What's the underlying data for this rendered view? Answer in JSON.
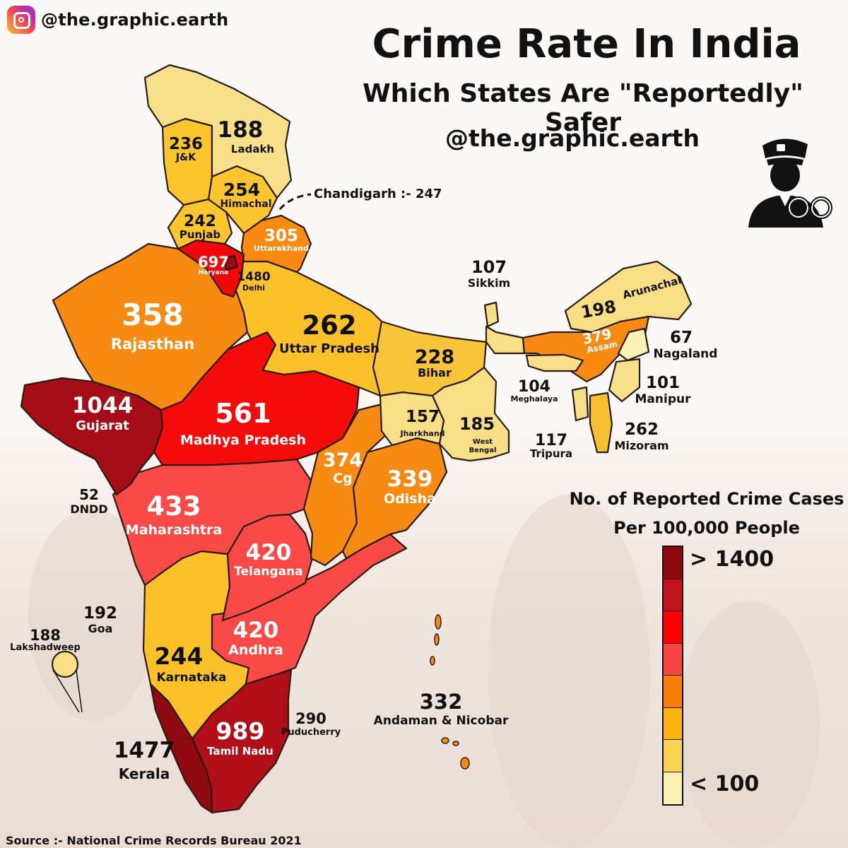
{
  "header": {
    "handle": "@the.graphic.earth",
    "title": "Crime Rate In India",
    "subtitle": "Which States Are \"Reportedly\" Safer",
    "handle2": "@the.graphic.earth"
  },
  "icons": {
    "brand": "instagram-icon",
    "illustration": "police-officer-handcuffs-icon"
  },
  "legend": {
    "title_line1": "No. of Reported Crime Cases",
    "title_line2": "Per 100,000 People",
    "high_label": "> 1400",
    "low_label": "< 100",
    "colors": [
      "#8e0a10",
      "#c0131b",
      "#ff0000",
      "#fb4545",
      "#f77f05",
      "#fbb30e",
      "#f8d34f",
      "#fcf1b2"
    ]
  },
  "source": "Source :- National Crime Records Bureau 2021",
  "chandigarh_note": "Chandigarh :- 247",
  "chart_data": {
    "type": "choropleth",
    "title": "Crime Rate In India",
    "subtitle": "Which States Are \"Reportedly\" Safer",
    "value_label": "No. of Reported Crime Cases Per 100,000 People",
    "regions": [
      {
        "name": "Ladakh",
        "value": 188,
        "color": "#f8e08a"
      },
      {
        "name": "J&K",
        "value": 236,
        "color": "#fbc52e"
      },
      {
        "name": "Himachal",
        "value": 254,
        "color": "#fbc52e"
      },
      {
        "name": "Punjab",
        "value": 242,
        "color": "#fbc52e"
      },
      {
        "name": "Uttarakhand",
        "value": 305,
        "color": "#f98c10"
      },
      {
        "name": "Haryana",
        "value": 697,
        "color": "#ee0a0a"
      },
      {
        "name": "Delhi",
        "value": 1480,
        "color": "#9b0b12"
      },
      {
        "name": "Chandigarh",
        "value": 247
      },
      {
        "name": "Rajasthan",
        "value": 358,
        "color": "#f68a12"
      },
      {
        "name": "Uttar Pradesh",
        "value": 262,
        "color": "#fbc02a"
      },
      {
        "name": "Bihar",
        "value": 228,
        "color": "#f8c53a"
      },
      {
        "name": "Sikkim",
        "value": 107,
        "color": "#f8df86"
      },
      {
        "name": "Arunachal",
        "value": 198,
        "color": "#f8df86"
      },
      {
        "name": "Assam",
        "value": 379,
        "color": "#f68a12"
      },
      {
        "name": "Nagaland",
        "value": 67,
        "color": "#fcf1b2"
      },
      {
        "name": "Meghalaya",
        "value": 104,
        "color": "#f8e08a"
      },
      {
        "name": "Manipur",
        "value": 101,
        "color": "#f8e08a"
      },
      {
        "name": "Mizoram",
        "value": 262,
        "color": "#f8c031"
      },
      {
        "name": "Tripura",
        "value": 117,
        "color": "#f8e08a"
      },
      {
        "name": "Jharkhand",
        "value": 157,
        "color": "#f8df86"
      },
      {
        "name": "West Bengal",
        "value": 185,
        "color": "#f8df86"
      },
      {
        "name": "Gujarat",
        "value": 1044,
        "color": "#a50e16"
      },
      {
        "name": "Madhya Pradesh",
        "value": 561,
        "color": "#f60b0b"
      },
      {
        "name": "Cg",
        "value": 374,
        "color": "#f68a12"
      },
      {
        "name": "Odisha",
        "value": 339,
        "color": "#f68a12"
      },
      {
        "name": "DNDD",
        "value": 52
      },
      {
        "name": "Maharashtra",
        "value": 433,
        "color": "#f94a48"
      },
      {
        "name": "Telangana",
        "value": 420,
        "color": "#f94a48"
      },
      {
        "name": "Goa",
        "value": 192
      },
      {
        "name": "Lakshadweep",
        "value": 188,
        "color": "#f8df86"
      },
      {
        "name": "Andhra",
        "value": 420,
        "color": "#f94a48"
      },
      {
        "name": "Karnataka",
        "value": 244,
        "color": "#fbc02a"
      },
      {
        "name": "Tamil Nadu",
        "value": 989,
        "color": "#b00f18"
      },
      {
        "name": "Puducherry",
        "value": 290
      },
      {
        "name": "Kerala",
        "value": 1477,
        "color": "#8e0a10"
      },
      {
        "name": "Andaman & Nicobar",
        "value": 332,
        "color": "#f68a12"
      }
    ]
  }
}
